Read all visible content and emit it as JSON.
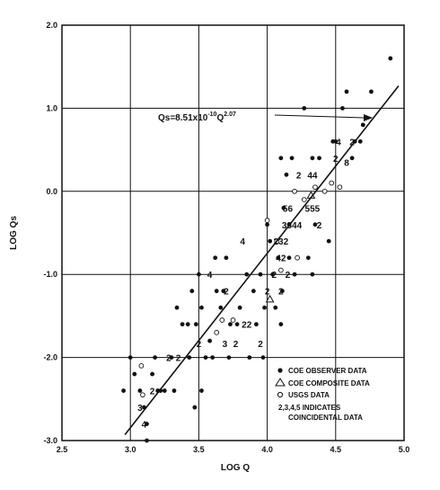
{
  "chart_data": {
    "type": "scatter",
    "xlabel": "LOG Q",
    "ylabel": "LOG Qs",
    "xlim": [
      2.5,
      5.0
    ],
    "ylim": [
      -3.0,
      2.0
    ],
    "x_ticks": [
      "2.5",
      "3.0",
      "3.5",
      "4.0",
      "4.5",
      "5.0"
    ],
    "y_ticks": [
      "-3.0",
      "-2.0",
      "-1.0",
      "0.0",
      "1.0",
      "2.0"
    ],
    "grid": true,
    "equation": {
      "lead": "Qs=8.51x10",
      "exp1": "-10",
      "mid": "Q",
      "exp2": "2.07"
    },
    "regression_line": {
      "x": [
        2.96,
        4.96
      ],
      "y": [
        -2.93,
        1.27
      ]
    },
    "series": [
      {
        "name": "COE OBSERVER DATA",
        "marker": "filled-circle",
        "points": [
          [
            2.95,
            -2.4
          ],
          [
            3.0,
            -2.0
          ],
          [
            3.03,
            -2.2
          ],
          [
            3.07,
            -2.4
          ],
          [
            3.1,
            -2.6
          ],
          [
            3.12,
            -2.8
          ],
          [
            3.12,
            -3.0
          ],
          [
            3.16,
            -2.2
          ],
          [
            3.18,
            -2.0
          ],
          [
            3.2,
            -2.4
          ],
          [
            3.22,
            -2.4
          ],
          [
            3.25,
            -2.4
          ],
          [
            3.3,
            -2.0
          ],
          [
            3.32,
            -2.4
          ],
          [
            3.34,
            -1.4
          ],
          [
            3.38,
            -1.6
          ],
          [
            3.42,
            -1.6
          ],
          [
            3.43,
            -2.0
          ],
          [
            3.45,
            -1.2
          ],
          [
            3.47,
            -2.6
          ],
          [
            3.48,
            -1.6
          ],
          [
            3.5,
            -1.0
          ],
          [
            3.52,
            -1.4
          ],
          [
            3.52,
            -2.4
          ],
          [
            3.55,
            -2.0
          ],
          [
            3.58,
            -1.8
          ],
          [
            3.6,
            -2.0
          ],
          [
            3.62,
            -0.8
          ],
          [
            3.63,
            -1.2
          ],
          [
            3.66,
            -1.4
          ],
          [
            3.68,
            -1.2
          ],
          [
            3.7,
            -0.8
          ],
          [
            3.72,
            -2.0
          ],
          [
            3.73,
            -1.6
          ],
          [
            3.78,
            -1.6
          ],
          [
            3.8,
            -1.4
          ],
          [
            3.85,
            -1.0
          ],
          [
            3.87,
            -2.0
          ],
          [
            3.9,
            -1.2
          ],
          [
            3.92,
            -1.6
          ],
          [
            3.95,
            -1.0
          ],
          [
            3.97,
            -2.0
          ],
          [
            3.98,
            -1.4
          ],
          [
            4.0,
            -0.4
          ],
          [
            4.02,
            -0.6
          ],
          [
            4.04,
            -1.0
          ],
          [
            4.06,
            -1.4
          ],
          [
            4.08,
            -0.8
          ],
          [
            4.1,
            0.4
          ],
          [
            4.1,
            -1.6
          ],
          [
            4.11,
            -1.2
          ],
          [
            4.12,
            -0.2
          ],
          [
            4.14,
            0.2
          ],
          [
            4.16,
            -0.4
          ],
          [
            4.16,
            -0.8
          ],
          [
            4.18,
            0.4
          ],
          [
            4.2,
            0.0
          ],
          [
            4.2,
            -1.0
          ],
          [
            4.27,
            1.0
          ],
          [
            4.3,
            -0.8
          ],
          [
            4.33,
            0.4
          ],
          [
            4.33,
            -1.0
          ],
          [
            4.35,
            -0.4
          ],
          [
            4.38,
            0.4
          ],
          [
            4.45,
            -0.6
          ],
          [
            4.48,
            0.6
          ],
          [
            4.5,
            0.6
          ],
          [
            4.55,
            1.0
          ],
          [
            4.58,
            1.2
          ],
          [
            4.62,
            0.4
          ],
          [
            4.64,
            0.6
          ],
          [
            4.68,
            0.6
          ],
          [
            4.7,
            0.8
          ],
          [
            4.76,
            1.2
          ],
          [
            4.9,
            1.6
          ]
        ]
      },
      {
        "name": "COE COMPOSITE DATA",
        "marker": "open-triangle",
        "points": [
          [
            4.02,
            -1.3
          ],
          [
            4.32,
            -0.05
          ]
        ]
      },
      {
        "name": "USGS DATA",
        "marker": "open-circle",
        "points": [
          [
            3.08,
            -2.1
          ],
          [
            3.09,
            -2.45
          ],
          [
            3.63,
            -1.7
          ],
          [
            3.67,
            -1.55
          ],
          [
            3.75,
            -1.55
          ],
          [
            4.0,
            -0.35
          ],
          [
            4.07,
            -0.6
          ],
          [
            4.1,
            -0.95
          ],
          [
            4.2,
            0.0
          ],
          [
            4.22,
            -0.8
          ],
          [
            4.27,
            -0.1
          ],
          [
            4.35,
            0.05
          ],
          [
            4.42,
            -0.0
          ],
          [
            4.47,
            0.1
          ],
          [
            4.53,
            0.05
          ]
        ]
      }
    ],
    "coincident_labels": [
      {
        "label": "2",
        "x": 3.28,
        "y": -2.0
      },
      {
        "label": "2",
        "x": 3.35,
        "y": -2.0
      },
      {
        "label": "2",
        "x": 3.16,
        "y": -2.4
      },
      {
        "label": "3",
        "x": 3.07,
        "y": -2.6
      },
      {
        "label": "4",
        "x": 3.1,
        "y": -2.8
      },
      {
        "label": "2",
        "x": 3.5,
        "y": -1.83
      },
      {
        "label": "4",
        "x": 3.58,
        "y": -1.0
      },
      {
        "label": "2",
        "x": 3.7,
        "y": -1.2
      },
      {
        "label": "3",
        "x": 3.69,
        "y": -1.83
      },
      {
        "label": "2",
        "x": 3.77,
        "y": -1.83
      },
      {
        "label": "22",
        "x": 3.85,
        "y": -1.6
      },
      {
        "label": "2",
        "x": 3.95,
        "y": -1.83
      },
      {
        "label": "4",
        "x": 3.82,
        "y": -0.6
      },
      {
        "label": "2",
        "x": 4.0,
        "y": -1.2
      },
      {
        "label": "2",
        "x": 4.1,
        "y": -1.2
      },
      {
        "label": "2",
        "x": 4.05,
        "y": -1.0
      },
      {
        "label": "2",
        "x": 4.15,
        "y": -1.0
      },
      {
        "label": "42",
        "x": 4.1,
        "y": -0.8
      },
      {
        "label": "232",
        "x": 4.1,
        "y": -0.6
      },
      {
        "label": "3344",
        "x": 4.18,
        "y": -0.4
      },
      {
        "label": "2",
        "x": 4.38,
        "y": -0.4
      },
      {
        "label": "56",
        "x": 4.15,
        "y": -0.2
      },
      {
        "label": "555",
        "x": 4.33,
        "y": -0.2
      },
      {
        "label": "2",
        "x": 4.23,
        "y": 0.2
      },
      {
        "label": "44",
        "x": 4.33,
        "y": 0.2
      },
      {
        "label": "2",
        "x": 4.5,
        "y": 0.4
      },
      {
        "label": "4",
        "x": 4.52,
        "y": 0.6
      },
      {
        "label": "2",
        "x": 4.62,
        "y": 0.6
      },
      {
        "label": "8",
        "x": 4.58,
        "y": 0.35
      }
    ],
    "legend": {
      "placement": "bottom-right",
      "entries": [
        {
          "marker": "filled-circle",
          "text": "COE OBSERVER DATA"
        },
        {
          "marker": "open-triangle",
          "text": "COE COMPOSITE DATA"
        },
        {
          "marker": "open-circle",
          "text": "USGS DATA"
        }
      ],
      "note_line1": "2,3,4,5 INDICATES",
      "note_line2": "COINCIDENTAL DATA"
    }
  }
}
